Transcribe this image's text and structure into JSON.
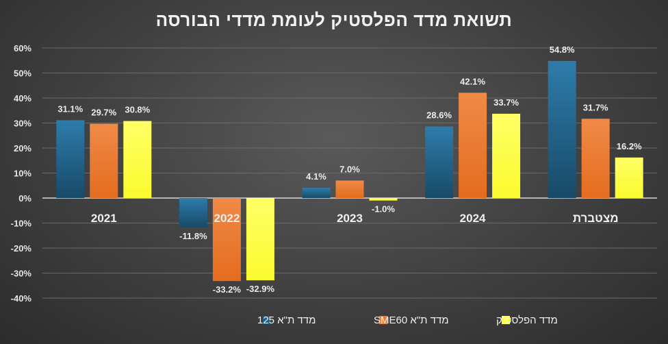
{
  "chart_data": {
    "type": "bar",
    "title": "תשואת מדד הפלסטיק לעומת מדדי הבורסה",
    "categories": [
      "2021",
      "2022",
      "2023",
      "2024",
      "מצטברת"
    ],
    "series": [
      {
        "name": "מדד ת\"א 125",
        "values": [
          31.1,
          -11.8,
          4.1,
          28.6,
          54.8
        ],
        "color": "#1f5f85",
        "labels": [
          "31.1%",
          "-11.8%",
          "4.1%",
          "28.6%",
          "54.8%"
        ]
      },
      {
        "name": "מדד ת\"א SME60",
        "values": [
          29.7,
          -33.2,
          7.0,
          42.1,
          31.7
        ],
        "color": "#ed7d31",
        "labels": [
          "29.7%",
          "-33.2%",
          "7.0%",
          "42.1%",
          "31.7%"
        ]
      },
      {
        "name": "מדד הפלסטיק",
        "values": [
          30.8,
          -32.9,
          -1.0,
          33.7,
          16.2
        ],
        "color": "#ffff4d",
        "labels": [
          "30.8%",
          "-32.9%",
          "-1.0%",
          "33.7%",
          "16.2%"
        ]
      }
    ],
    "ylim": [
      -40,
      60
    ],
    "yticks": [
      60,
      50,
      40,
      30,
      20,
      10,
      0,
      -10,
      -20,
      -30,
      -40
    ],
    "ytick_labels": [
      "60%",
      "50%",
      "40%",
      "30%",
      "20%",
      "10%",
      "0%",
      "-10%",
      "-20%",
      "-30%",
      "-40%"
    ],
    "grid": true,
    "legend_position": "bottom"
  }
}
